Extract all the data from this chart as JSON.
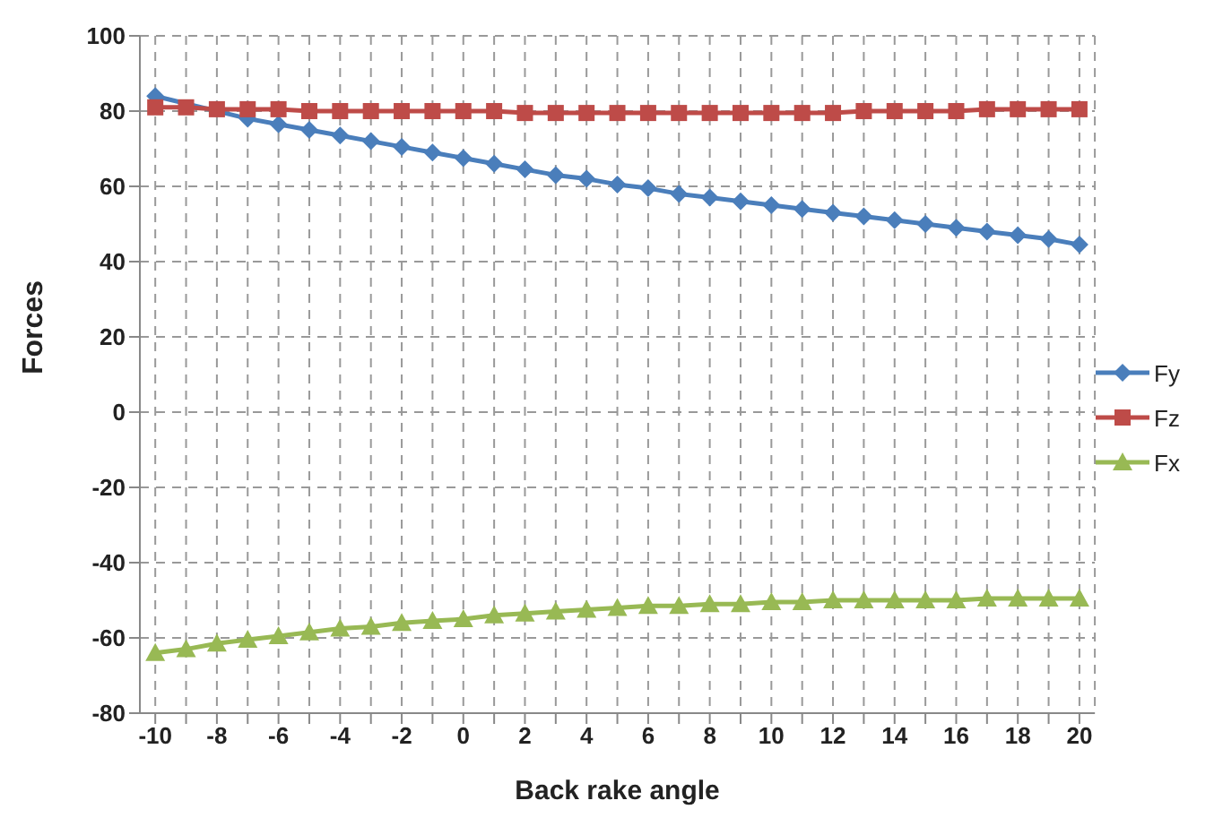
{
  "chart_data": {
    "type": "line",
    "xlabel": "Back rake angle",
    "ylabel": "Forces",
    "x": [
      -10,
      -9,
      -8,
      -7,
      -6,
      -5,
      -4,
      -3,
      -2,
      -1,
      0,
      1,
      2,
      3,
      4,
      5,
      6,
      7,
      8,
      9,
      10,
      11,
      12,
      13,
      14,
      15,
      16,
      17,
      18,
      19,
      20
    ],
    "series": [
      {
        "name": "Fy",
        "color": "#4a7ebb",
        "marker": "diamond",
        "values": [
          84,
          null,
          null,
          78,
          76.5,
          75,
          73.5,
          72,
          70.5,
          69,
          67.5,
          66,
          64.5,
          63,
          62,
          60.5,
          59.5,
          58,
          57,
          56,
          55,
          54,
          53,
          52,
          51,
          50,
          49,
          48,
          47,
          46,
          44.5
        ]
      },
      {
        "name": "Fz",
        "color": "#be4b48",
        "marker": "square",
        "values": [
          81,
          81,
          80.5,
          80.5,
          80.5,
          80,
          80,
          80,
          80,
          80,
          80,
          80,
          79.5,
          79.5,
          79.5,
          79.5,
          79.5,
          79.5,
          79.5,
          79.5,
          79.5,
          79.5,
          79.5,
          80,
          80,
          80,
          80,
          80.5,
          80.5,
          80.5,
          80.5
        ]
      },
      {
        "name": "Fx",
        "color": "#98b954",
        "marker": "triangle",
        "values": [
          -64,
          -63,
          -61.5,
          -60.5,
          -59.5,
          -58.5,
          -57.5,
          -57,
          -56,
          -55.5,
          -55,
          -54,
          -53.5,
          -53,
          -52.5,
          -52,
          -51.5,
          -51.5,
          -51,
          -51,
          -50.5,
          -50.5,
          -50,
          -50,
          -50,
          -50,
          -50,
          -49.5,
          -49.5,
          -49.5,
          -49.5
        ]
      }
    ],
    "xlim": [
      -10.5,
      20.5
    ],
    "xticks": [
      -10,
      {
        "value": -9,
        "label": null
      },
      -8,
      {
        "value": -7,
        "label": null
      },
      -6,
      {
        "value": -5,
        "label": null
      },
      -4,
      {
        "value": -3,
        "label": null
      },
      -2,
      {
        "value": -1,
        "label": null
      },
      0,
      {
        "value": 1,
        "label": null
      },
      2,
      {
        "value": 3,
        "label": null
      },
      4,
      {
        "value": 5,
        "label": null
      },
      6,
      {
        "value": 7,
        "label": null
      },
      8,
      {
        "value": 9,
        "label": null
      },
      10,
      {
        "value": 11,
        "label": null
      },
      12,
      {
        "value": 13,
        "label": null
      },
      14,
      {
        "value": 15,
        "label": null
      },
      16,
      {
        "value": 17,
        "label": null
      },
      18,
      {
        "value": 19,
        "label": null
      },
      20
    ],
    "ylim": [
      -80,
      100
    ],
    "yticks": [
      -80,
      -60,
      -40,
      -20,
      0,
      20,
      40,
      60,
      80,
      100
    ],
    "grid": true,
    "legend": "right",
    "line_style": "solid"
  }
}
